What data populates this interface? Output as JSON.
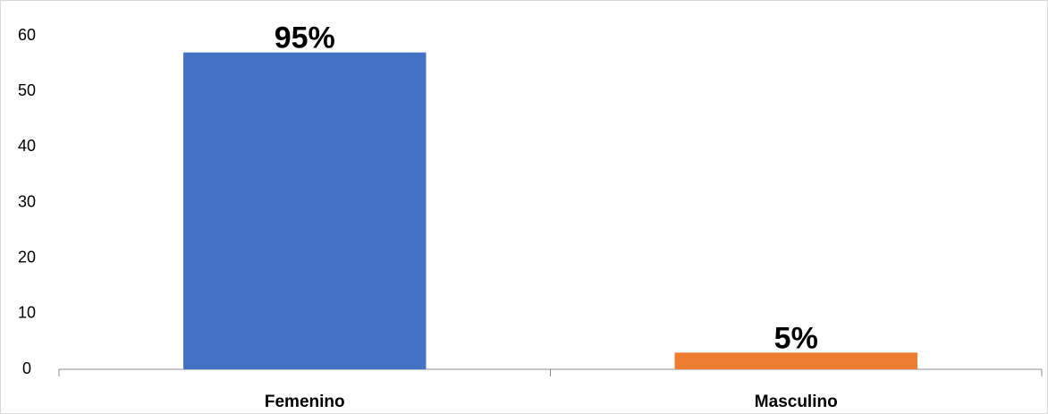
{
  "chart_data": {
    "type": "bar",
    "categories": [
      "Femenino",
      "Masculino"
    ],
    "values": [
      57,
      3
    ],
    "value_labels": [
      "95%",
      "5%"
    ],
    "colors": [
      "#4472c4",
      "#ed7d31"
    ],
    "ylim": [
      0,
      60
    ],
    "yticks": [
      0,
      10,
      20,
      30,
      40,
      50,
      60
    ],
    "grid": false
  }
}
